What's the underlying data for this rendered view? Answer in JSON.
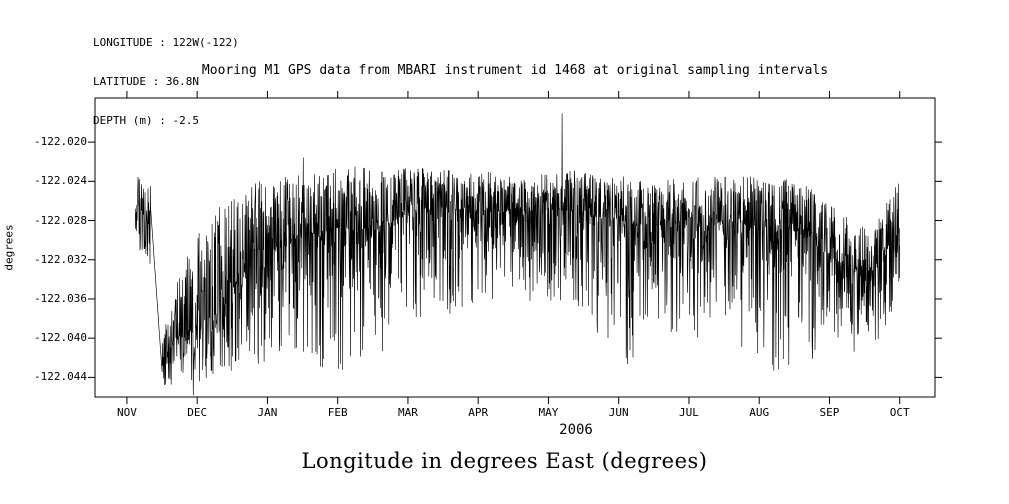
{
  "header": {
    "lines": [
      "LONGITUDE : 122W(-122)",
      "LATITUDE : 36.8N",
      "DEPTH (m) : -2.5"
    ]
  },
  "title": "Mooring M1 GPS data from MBARI instrument id 1468 at original sampling intervals",
  "caption": "Longitude in degrees East (degrees)",
  "chart_data": {
    "type": "line",
    "title": "Mooring M1 GPS data from MBARI instrument id 1468 at original sampling intervals",
    "ylabel": "degrees",
    "xlabel": "2006",
    "line_color": "#000000",
    "grid": false,
    "legend": "none",
    "x_ticks": [
      "NOV",
      "DEC",
      "JAN",
      "FEB",
      "MAR",
      "APR",
      "MAY",
      "JUN",
      "JUL",
      "AUG",
      "SEP",
      "OCT"
    ],
    "y_ticks": [
      "-122.020",
      "-122.024",
      "-122.028",
      "-122.032",
      "-122.036",
      "-122.040",
      "-122.044"
    ],
    "ylim": [
      -122.046,
      -122.0155
    ],
    "series": [
      {
        "name": "longitude_degrees_east",
        "samples": 2600,
        "seed": 7,
        "t_range": [
          0.048,
          0.958
        ],
        "envelope": [
          [
            0.048,
            -122.027,
            0.0035,
            0.004
          ],
          [
            0.065,
            -122.027,
            0.0035,
            0.005
          ],
          [
            0.08,
            -122.042,
            0.002,
            0.003
          ],
          [
            0.095,
            -122.04,
            0.005,
            0.005
          ],
          [
            0.115,
            -122.039,
            0.009,
            0.006
          ],
          [
            0.135,
            -122.038,
            0.01,
            0.0065
          ],
          [
            0.155,
            -122.0365,
            0.011,
            0.007
          ],
          [
            0.175,
            -122.033,
            0.008,
            0.01
          ],
          [
            0.195,
            -122.031,
            0.007,
            0.012
          ],
          [
            0.215,
            -122.03,
            0.0065,
            0.013
          ],
          [
            0.235,
            -122.0295,
            0.006,
            0.014
          ],
          [
            0.255,
            -122.029,
            0.006,
            0.0145
          ],
          [
            0.275,
            -122.029,
            0.006,
            0.0145
          ],
          [
            0.295,
            -122.0285,
            0.006,
            0.015
          ],
          [
            0.315,
            -122.0285,
            0.006,
            0.014
          ],
          [
            0.335,
            -122.029,
            0.006,
            0.013
          ],
          [
            0.355,
            -122.028,
            0.005,
            0.0125
          ],
          [
            0.375,
            -122.027,
            0.0045,
            0.0115
          ],
          [
            0.405,
            -122.0265,
            0.004,
            0.0105
          ],
          [
            0.435,
            -122.027,
            0.004,
            0.011
          ],
          [
            0.465,
            -122.027,
            0.004,
            0.0095
          ],
          [
            0.495,
            -122.027,
            0.0035,
            0.0085
          ],
          [
            0.525,
            -122.027,
            0.0035,
            0.0095
          ],
          [
            0.55,
            -122.0268,
            0.0045,
            0.0105
          ],
          [
            0.575,
            -122.027,
            0.004,
            0.012
          ],
          [
            0.605,
            -122.0275,
            0.004,
            0.013
          ],
          [
            0.635,
            -122.028,
            0.0045,
            0.015
          ],
          [
            0.665,
            -122.0285,
            0.0045,
            0.014
          ],
          [
            0.695,
            -122.028,
            0.0045,
            0.0125
          ],
          [
            0.725,
            -122.028,
            0.0045,
            0.012
          ],
          [
            0.755,
            -122.028,
            0.0045,
            0.0115
          ],
          [
            0.785,
            -122.0285,
            0.005,
            0.0145
          ],
          [
            0.815,
            -122.0285,
            0.005,
            0.0155
          ],
          [
            0.845,
            -122.029,
            0.005,
            0.0145
          ],
          [
            0.875,
            -122.0315,
            0.0055,
            0.0105
          ],
          [
            0.9,
            -122.033,
            0.005,
            0.009
          ],
          [
            0.925,
            -122.033,
            0.005,
            0.009
          ],
          [
            0.945,
            -122.0305,
            0.005,
            0.008
          ],
          [
            0.958,
            -122.029,
            0.005,
            0.006
          ]
        ],
        "gap_lines": [
          [
            0.066,
            -122.0265,
            0.08,
            -122.0436
          ]
        ],
        "spikes": [
          [
            0.117,
            -122.0458
          ],
          [
            0.248,
            -122.0216
          ],
          [
            0.556,
            -122.0171
          ]
        ]
      }
    ]
  }
}
